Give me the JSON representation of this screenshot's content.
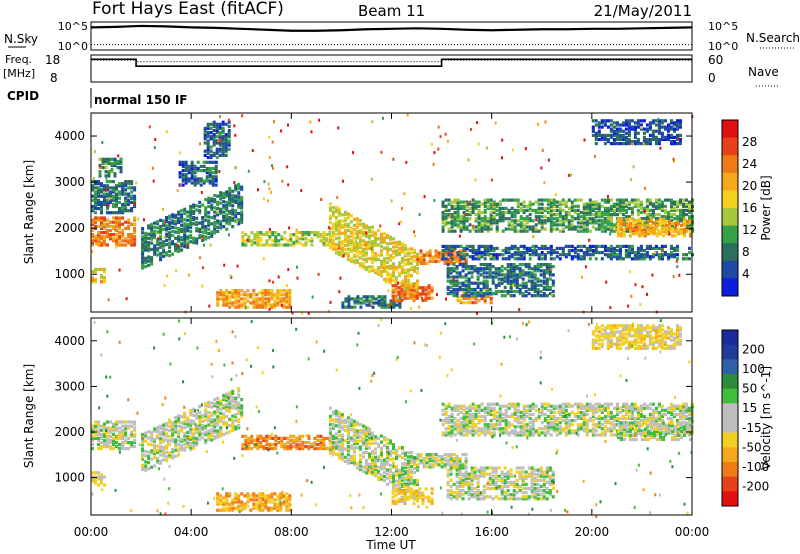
{
  "header": {
    "radar_name": "Fort Hays East (fitACF)",
    "beam_label": "Beam 11",
    "date": "21/May/2011"
  },
  "summary": {
    "nsky_label": "N.Sky",
    "nsearch_label": "N.Search",
    "nsky_ticks": [
      "10^5",
      "10^0"
    ],
    "freq_label_line1": "Freq.",
    "freq_label_line2": "[MHz]",
    "freq_ticks": [
      "18",
      "8"
    ],
    "nave_label": "Nave",
    "nave_ticks": [
      "60",
      "0"
    ],
    "cpid_label": "CPID",
    "cpid_value": "normal 150 IF"
  },
  "x_axis": {
    "title": "Time UT",
    "ticks": [
      "00:00",
      "04:00",
      "08:00",
      "12:00",
      "16:00",
      "20:00",
      "00:00"
    ]
  },
  "colors": {
    "power": [
      "#0a1edc",
      "#1f49a6",
      "#2c6f5e",
      "#34a048",
      "#a8c83c",
      "#f2d020",
      "#f5a81c",
      "#ef7a16",
      "#e8401a",
      "#e01010"
    ],
    "velocity": [
      "#1a2a9c",
      "#223a9a",
      "#2e5fa8",
      "#2e8a3c",
      "#3fbe3c",
      "#bebebe",
      "#bebebe",
      "#f2d020",
      "#f5a81c",
      "#ef7a16",
      "#e8401a",
      "#e01010"
    ]
  },
  "chart_data": [
    {
      "type": "line",
      "panel": "N.Sky / N.Search",
      "x_range_hours": [
        0,
        24
      ],
      "series": [
        {
          "name": "N.Sky",
          "style": "solid",
          "x": [
            0,
            1,
            2,
            3,
            4,
            5,
            6,
            7,
            8,
            9,
            10,
            11,
            12,
            13,
            14,
            15,
            16,
            17,
            18,
            19,
            20,
            21,
            22,
            23,
            24
          ],
          "y_fraction": [
            0.86,
            0.88,
            0.92,
            0.9,
            0.86,
            0.84,
            0.8,
            0.76,
            0.72,
            0.72,
            0.74,
            0.78,
            0.8,
            0.82,
            0.8,
            0.76,
            0.74,
            0.76,
            0.78,
            0.78,
            0.8,
            0.8,
            0.82,
            0.84,
            0.86
          ]
        },
        {
          "name": "N.Search",
          "style": "dotted",
          "x": [
            0,
            24
          ],
          "y_fraction": [
            0.14,
            0.14
          ]
        }
      ]
    },
    {
      "type": "line",
      "panel": "Freq. / Nave",
      "x_range_hours": [
        0,
        24
      ],
      "series": [
        {
          "name": "Freq.",
          "x": [
            0,
            1.8,
            1.8,
            14.0,
            14.0,
            24
          ],
          "y": [
            17,
            17,
            14,
            14,
            17,
            17
          ],
          "ylim": [
            8,
            18
          ]
        },
        {
          "name": "Nave",
          "style": "dotted",
          "x": [
            0,
            1.8,
            1.8,
            14.0,
            14.0,
            24
          ],
          "y": [
            52,
            52,
            48,
            48,
            52,
            52
          ],
          "ylim": [
            0,
            60
          ]
        }
      ]
    },
    {
      "type": "heatmap",
      "panel": "Power",
      "xlabel": "",
      "ylabel": "Slant Range [km]",
      "x_range_hours": [
        0,
        24
      ],
      "ylim": [
        180,
        4500
      ],
      "y_ticks": [
        1000,
        2000,
        3000,
        4000
      ],
      "colorbar": {
        "label": "Power [dB]",
        "ticks": [
          "4",
          "8",
          "12",
          "16",
          "20",
          "24",
          "28"
        ],
        "range": [
          0,
          30
        ]
      },
      "regions": [
        {
          "t0": 0.0,
          "t1": 1.7,
          "r0": 1600,
          "r1": 2200,
          "level": 22
        },
        {
          "t0": 0.0,
          "t1": 0.6,
          "r0": 800,
          "r1": 1100,
          "level": 18
        },
        {
          "t0": 0.0,
          "t1": 1.8,
          "r0": 2300,
          "r1": 3000,
          "level": 7
        },
        {
          "t0": 0.3,
          "t1": 1.2,
          "r0": 3100,
          "r1": 3500,
          "level": 9
        },
        {
          "t0": 2.0,
          "t1": 6.0,
          "r0": 1100,
          "r1": 2000,
          "level": 8,
          "slope_km_per_h": 250
        },
        {
          "t0": 3.5,
          "t1": 5.0,
          "r0": 2900,
          "r1": 3400,
          "level": 6
        },
        {
          "t0": 4.5,
          "t1": 5.5,
          "r0": 3500,
          "r1": 4300,
          "level": 6
        },
        {
          "t0": 5.0,
          "t1": 8.0,
          "r0": 250,
          "r1": 650,
          "level": 20
        },
        {
          "t0": 6.0,
          "t1": 9.6,
          "r0": 1600,
          "r1": 1900,
          "level": 14
        },
        {
          "t0": 9.5,
          "t1": 13.0,
          "r0": 1500,
          "r1": 2500,
          "level": 16,
          "slope_km_per_h": -300
        },
        {
          "t0": 10.0,
          "t1": 12.3,
          "r0": 250,
          "r1": 500,
          "level": 8
        },
        {
          "t0": 12.0,
          "t1": 13.6,
          "r0": 400,
          "r1": 750,
          "level": 23
        },
        {
          "t0": 13.0,
          "t1": 15.0,
          "r0": 1200,
          "r1": 1500,
          "level": 22
        },
        {
          "t0": 14.6,
          "t1": 16.0,
          "r0": 350,
          "r1": 650,
          "level": 21
        },
        {
          "t0": 14.0,
          "t1": 24.0,
          "r0": 1300,
          "r1": 1600,
          "level": 6
        },
        {
          "t0": 14.0,
          "t1": 24.0,
          "r0": 1900,
          "r1": 2600,
          "level": 10
        },
        {
          "t0": 14.2,
          "t1": 18.5,
          "r0": 500,
          "r1": 1200,
          "level": 7
        },
        {
          "t0": 20.0,
          "t1": 23.5,
          "r0": 3800,
          "r1": 4300,
          "level": 5
        },
        {
          "t0": 21.0,
          "t1": 24.0,
          "r0": 1800,
          "r1": 2200,
          "level": 19
        }
      ]
    },
    {
      "type": "heatmap",
      "panel": "Velocity",
      "xlabel": "Time UT",
      "ylabel": "Slant Range [km]",
      "x_range_hours": [
        0,
        24
      ],
      "ylim": [
        180,
        4500
      ],
      "y_ticks": [
        1000,
        2000,
        3000,
        4000
      ],
      "colorbar": {
        "label": "Velocity [m s^-1]",
        "ticks": [
          "200",
          "100",
          "50",
          "15",
          "-15",
          "-50",
          "-100",
          "-200"
        ],
        "range": [
          -250,
          250
        ]
      },
      "regions": [
        {
          "t0": 0.0,
          "t1": 1.7,
          "r0": 1600,
          "r1": 2200,
          "level": 0
        },
        {
          "t0": 0.0,
          "t1": 0.6,
          "r0": 800,
          "r1": 1100,
          "level": -20
        },
        {
          "t0": 2.0,
          "t1": 6.0,
          "r0": 1100,
          "r1": 2000,
          "level": 0,
          "slope_km_per_h": 250
        },
        {
          "t0": 5.0,
          "t1": 8.0,
          "r0": 250,
          "r1": 650,
          "level": -60
        },
        {
          "t0": 6.0,
          "t1": 9.6,
          "r0": 1600,
          "r1": 1900,
          "level": -80
        },
        {
          "t0": 9.5,
          "t1": 13.0,
          "r0": 1500,
          "r1": 2500,
          "level": 0,
          "slope_km_per_h": -300
        },
        {
          "t0": 12.0,
          "t1": 13.6,
          "r0": 400,
          "r1": 750,
          "level": -40
        },
        {
          "t0": 13.0,
          "t1": 15.0,
          "r0": 1200,
          "r1": 1500,
          "level": 0
        },
        {
          "t0": 14.0,
          "t1": 24.0,
          "r0": 1900,
          "r1": 2600,
          "level": 0
        },
        {
          "t0": 14.2,
          "t1": 18.5,
          "r0": 500,
          "r1": 1200,
          "level": 0
        },
        {
          "t0": 20.0,
          "t1": 23.5,
          "r0": 3800,
          "r1": 4300,
          "level": -30
        },
        {
          "t0": 21.0,
          "t1": 24.0,
          "r0": 1800,
          "r1": 2200,
          "level": 0
        }
      ]
    }
  ]
}
